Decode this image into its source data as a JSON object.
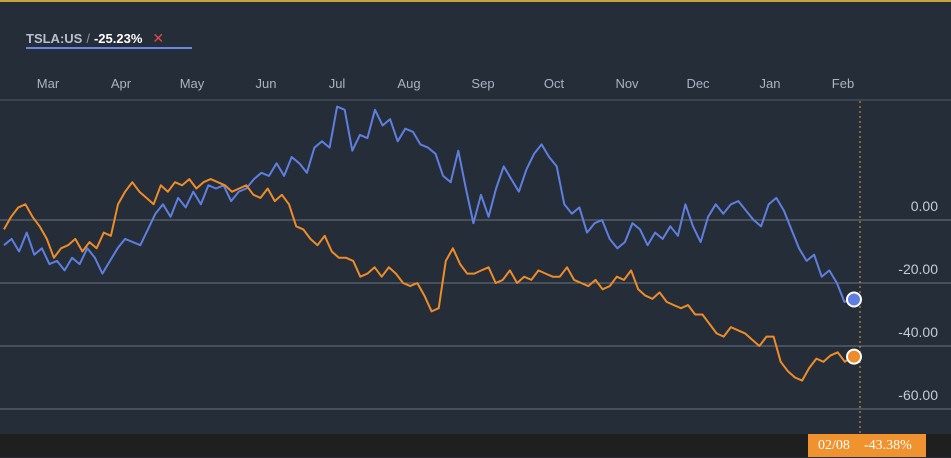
{
  "legend": {
    "symbol": "TSLA:US",
    "separator": "/",
    "change": "-25.23%",
    "close_glyph": "✕"
  },
  "crosshair": {
    "date_label": "02/08",
    "value_label": "-43.38%"
  },
  "colors": {
    "background": "#252d38",
    "tsla_line": "#5f7fe0",
    "comparison_line": "#ee8c2a",
    "grid": "#6c7480",
    "axis_text": "#aab4c2"
  },
  "chart_data": {
    "type": "line",
    "x_tick_labels": [
      "Mar",
      "Apr",
      "May",
      "Jun",
      "Jul",
      "Aug",
      "Sep",
      "Oct",
      "Nov",
      "Dec",
      "Jan",
      "Feb"
    ],
    "y_tick_labels": [
      "0.00",
      "-20.00",
      "-40.00",
      "-60.00"
    ],
    "y_ticks": [
      0,
      -20,
      -40,
      -60
    ],
    "ylim": [
      -68,
      30
    ],
    "grid": "horizontal",
    "series": [
      {
        "name": "TSLA:US",
        "color": "#5f7fe0",
        "last_value": -25.23,
        "values": [
          -8,
          -6,
          -10,
          -4,
          -11,
          -9,
          -14,
          -13,
          -16,
          -12,
          -14,
          -9,
          -12,
          -17,
          -13,
          -9,
          -6,
          -7,
          -8,
          -3,
          2,
          5,
          1,
          7,
          4,
          9,
          5,
          11,
          10,
          11,
          6,
          9,
          10,
          13,
          15,
          14,
          18,
          14,
          20,
          18,
          15,
          23,
          25,
          23,
          36,
          35,
          22,
          27,
          26,
          35,
          30,
          32,
          25,
          29,
          28,
          24,
          23,
          21,
          14,
          12,
          22,
          10,
          -1,
          8,
          1,
          10,
          17,
          13,
          9,
          16,
          21,
          24,
          20,
          17,
          5,
          2,
          4,
          -4,
          -1,
          0,
          -6,
          -9,
          -7,
          -1,
          -3,
          -8,
          -4,
          -6,
          -2,
          -5,
          5,
          -2,
          -7,
          1,
          5,
          2,
          5,
          6,
          3,
          0,
          -2,
          5,
          7,
          3,
          -3,
          -9,
          -13,
          -11,
          -18,
          -16,
          -20,
          -26,
          -25.23
        ]
      },
      {
        "name": "",
        "color": "#ee8c2a",
        "last_value": -43.38,
        "values": [
          -3,
          1,
          4,
          5,
          1,
          -2,
          -6,
          -12,
          -9,
          -8,
          -6,
          -10,
          -7,
          -9,
          -4,
          -5,
          5,
          9,
          12,
          9,
          7,
          5,
          11,
          9,
          12,
          11,
          13,
          10,
          12,
          13,
          12,
          11,
          9,
          10,
          11,
          8,
          7,
          10,
          6,
          8,
          5,
          -2,
          -3,
          -6,
          -8,
          -5,
          -10,
          -12,
          -12,
          -13,
          -18,
          -17,
          -15,
          -18,
          -15,
          -17,
          -20,
          -21,
          -20,
          -24,
          -29,
          -28,
          -13,
          -9,
          -14,
          -17,
          -17,
          -16,
          -15,
          -20,
          -19,
          -16,
          -20,
          -18,
          -19,
          -16,
          -17,
          -18,
          -18,
          -15,
          -19,
          -20,
          -21,
          -19,
          -22,
          -21,
          -18,
          -19,
          -16,
          -22,
          -24,
          -25,
          -23,
          -26,
          -27,
          -28,
          -27,
          -30,
          -30,
          -33,
          -36,
          -37,
          -34,
          -35,
          -36,
          -38,
          -40,
          -37,
          -37,
          -45,
          -48,
          -50,
          -51,
          -47,
          -44,
          -45,
          -43,
          -42,
          -45,
          -43.38
        ]
      }
    ]
  }
}
